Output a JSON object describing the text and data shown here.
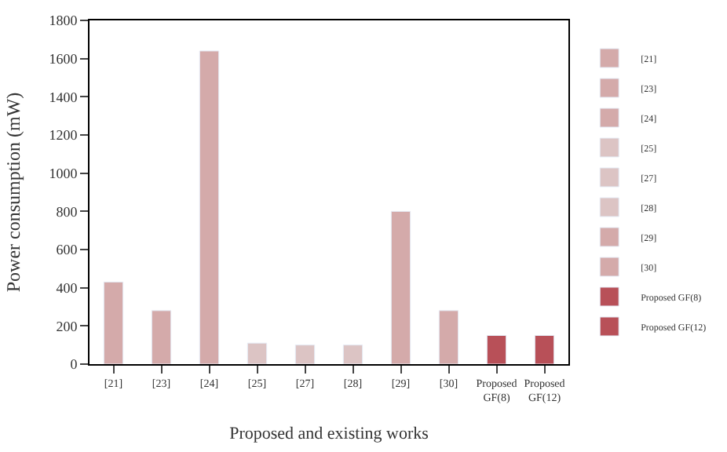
{
  "chart_data": {
    "type": "bar",
    "xlabel": "Proposed and existing works",
    "ylabel": "Power consumption (mW)",
    "categories": [
      "[21]",
      "[23]",
      "[24]",
      "[25]",
      "[27]",
      "[28]",
      "[29]",
      "[30]",
      "Proposed GF(8)",
      "Proposed GF(12)"
    ],
    "series": [
      {
        "name": "[21]",
        "color": "#d4aaaa",
        "values": [
          430,
          null,
          null,
          null,
          null,
          null,
          null,
          null,
          null,
          null
        ]
      },
      {
        "name": "[23]",
        "color": "#d4aaaa",
        "values": [
          null,
          280,
          null,
          null,
          null,
          null,
          null,
          null,
          null,
          null
        ]
      },
      {
        "name": "[24]",
        "color": "#d4aaaa",
        "values": [
          null,
          null,
          1640,
          null,
          null,
          null,
          null,
          null,
          null,
          null
        ]
      },
      {
        "name": "[25]",
        "color": "#dcc4c4",
        "values": [
          null,
          null,
          null,
          110,
          null,
          null,
          null,
          null,
          null,
          null
        ]
      },
      {
        "name": "[27]",
        "color": "#dcc4c4",
        "values": [
          null,
          null,
          null,
          null,
          100,
          null,
          null,
          null,
          null,
          null
        ]
      },
      {
        "name": "[28]",
        "color": "#dcc4c4",
        "values": [
          null,
          null,
          null,
          null,
          null,
          100,
          null,
          null,
          null,
          null
        ]
      },
      {
        "name": "[29]",
        "color": "#d4aaaa",
        "values": [
          null,
          null,
          null,
          null,
          null,
          null,
          800,
          null,
          null,
          null
        ]
      },
      {
        "name": "[30]",
        "color": "#d4aaaa",
        "values": [
          null,
          null,
          null,
          null,
          null,
          null,
          null,
          280,
          null,
          null
        ]
      },
      {
        "name": "Proposed GF(8)",
        "color": "#b85058",
        "values": [
          null,
          null,
          null,
          null,
          null,
          null,
          null,
          null,
          150,
          null
        ]
      },
      {
        "name": "Proposed GF(12)",
        "color": "#b85058",
        "values": [
          null,
          null,
          null,
          null,
          null,
          null,
          null,
          null,
          null,
          150
        ]
      }
    ],
    "ylim": [
      0,
      1800
    ],
    "yticks": [
      0,
      200,
      400,
      600,
      800,
      1000,
      1200,
      1400,
      1600,
      1800
    ],
    "legend": "right"
  }
}
